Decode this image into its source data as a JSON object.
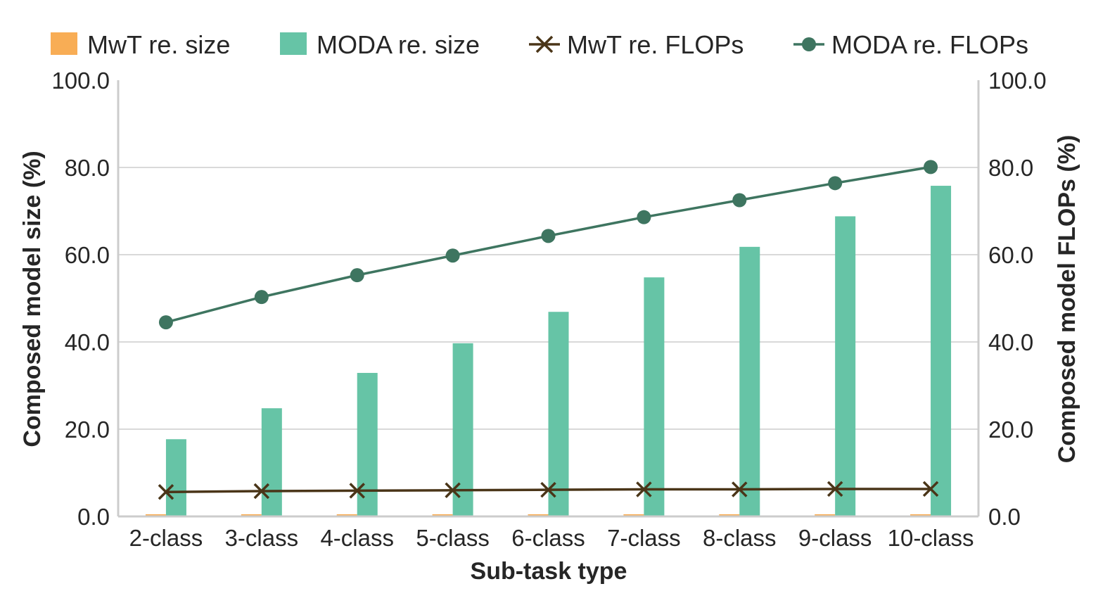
{
  "chart_data": {
    "type": "bar",
    "categories": [
      "2-class",
      "3-class",
      "4-class",
      "5-class",
      "6-class",
      "7-class",
      "8-class",
      "9-class",
      "10-class"
    ],
    "series": [
      {
        "name": "MwT re. size",
        "kind": "bar",
        "axis": "left",
        "color": "#f8ad55",
        "values": [
          0.5,
          0.5,
          0.5,
          0.5,
          0.5,
          0.5,
          0.5,
          0.5,
          0.5
        ]
      },
      {
        "name": "MODA re. size",
        "kind": "bar",
        "axis": "left",
        "color": "#66c4a6",
        "values": [
          17.7,
          24.8,
          32.9,
          39.7,
          46.9,
          54.8,
          61.8,
          68.8,
          75.8
        ]
      },
      {
        "name": "MwT re. FLOPs",
        "kind": "line",
        "marker": "x",
        "axis": "right",
        "color": "#4a3518",
        "values": [
          5.6,
          5.8,
          5.9,
          6.0,
          6.1,
          6.2,
          6.2,
          6.3,
          6.3
        ]
      },
      {
        "name": "MODA re. FLOPs",
        "kind": "line",
        "marker": "circle",
        "axis": "right",
        "color": "#3e7560",
        "values": [
          44.5,
          50.3,
          55.3,
          59.8,
          64.3,
          68.6,
          72.5,
          76.4,
          80.1
        ]
      }
    ],
    "xlabel": "Sub-task type",
    "ylabel": "Composed model size (%)",
    "y2label": "Composed model FLOPs (%)",
    "ylim": [
      0,
      100
    ],
    "y2lim": [
      0,
      100
    ],
    "yticks": [
      "0.0",
      "20.0",
      "40.0",
      "60.0",
      "80.0",
      "100.0"
    ],
    "y2ticks": [
      "0.0",
      "20.0",
      "40.0",
      "60.0",
      "80.0",
      "100.0"
    ],
    "grid": true,
    "legend_position": "top"
  }
}
